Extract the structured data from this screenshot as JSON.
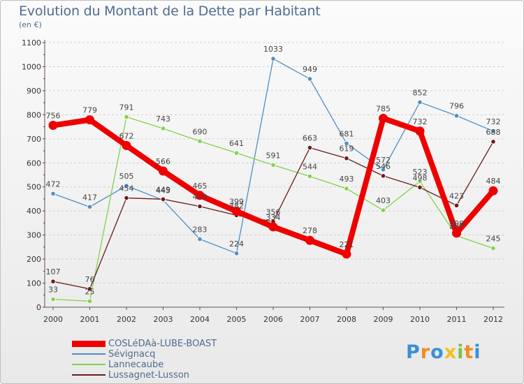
{
  "chart_data": {
    "type": "line",
    "title": "Evolution du Montant de la Dette par Habitant",
    "subtitle": "(en €)",
    "xlabel": "",
    "ylabel": "",
    "ylim": [
      0,
      1100
    ],
    "yticks": [
      0,
      100,
      200,
      300,
      400,
      500,
      600,
      700,
      800,
      900,
      1000,
      1100
    ],
    "categories": [
      "2000",
      "2001",
      "2002",
      "2003",
      "2004",
      "2005",
      "2006",
      "2007",
      "2008",
      "2009",
      "2010",
      "2011",
      "2012"
    ],
    "grid": "horizontal dashed",
    "series": [
      {
        "name": "COSLéDAà-LUBE-BOAST",
        "color": "#ee0000",
        "values": [
          756,
          779,
          672,
          566,
          465,
          399,
          334,
          278,
          221,
          785,
          732,
          308,
          484
        ]
      },
      {
        "name": "Sévignacq",
        "color": "#4f8fc4",
        "values": [
          472,
          417,
          505,
          445,
          283,
          224,
          1033,
          949,
          681,
          572,
          852,
          796,
          732
        ]
      },
      {
        "name": "Lannecaube",
        "color": "#82d24a",
        "values": [
          33,
          25,
          791,
          743,
          690,
          641,
          591,
          544,
          493,
          403,
          523,
          297,
          245
        ]
      },
      {
        "name": "Lussagnet-Lusson",
        "color": "#6b1a1a",
        "values": [
          107,
          76,
          454,
          449,
          419,
          382,
          356,
          663,
          619,
          546,
          498,
          423,
          688
        ]
      }
    ]
  },
  "logo": {
    "letters": [
      "P",
      "r",
      "o",
      "x",
      "i",
      "t",
      "i"
    ],
    "colors": [
      "#3a8fd8",
      "#f28c1e",
      "#3a8fd8",
      "#f2c21e",
      "#7cc04a",
      "#f28c1e",
      "#3a8fd8"
    ]
  }
}
